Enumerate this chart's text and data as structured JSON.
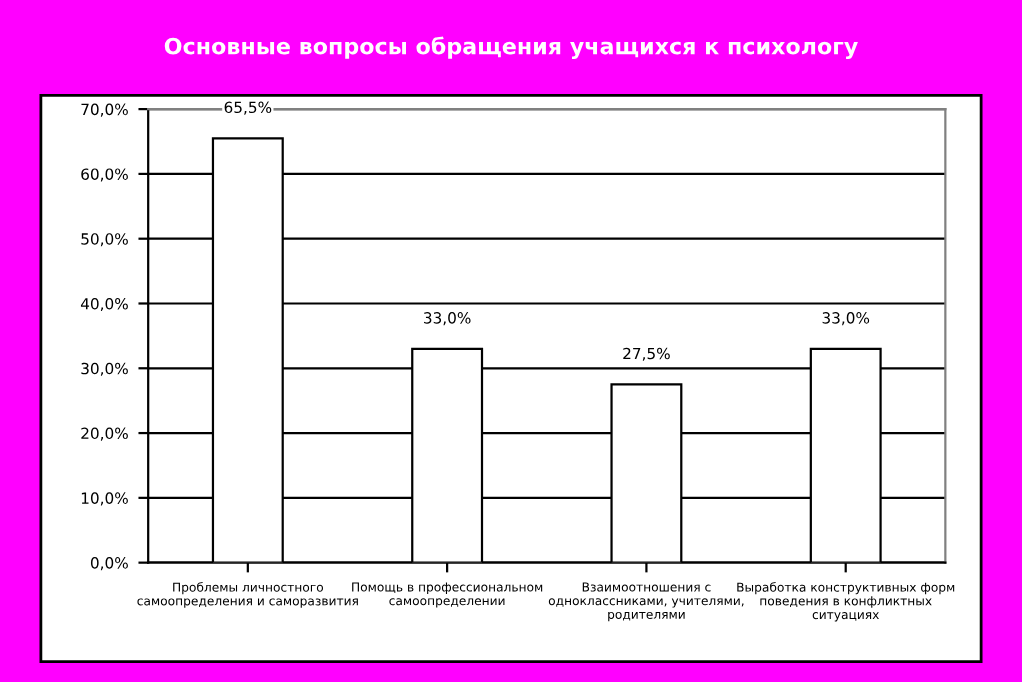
{
  "chart_data": {
    "type": "bar",
    "title": "Основные вопросы обращения учащихся к психологу",
    "categories": [
      "Проблемы личностного\nсамоопределения и саморазвития",
      "Помощь в профессиональном\nсамоопределении",
      "Взаимоотношения с\nодноклассниками, учителями,\nродителями",
      "Выработка конструктивных форм\nповедения в конфликтных\nситуациях"
    ],
    "values": [
      65.5,
      33.0,
      27.5,
      33.0
    ],
    "value_labels": [
      "65,5%",
      "33,0%",
      "27,5%",
      "33,0%"
    ],
    "color": "#ffffff",
    "ylim": [
      0,
      70
    ],
    "yticks": [
      {
        "value": 0,
        "label": "0,0%"
      },
      {
        "value": 10,
        "label": "10,0%"
      },
      {
        "value": 20,
        "label": "20,0%"
      },
      {
        "value": 30,
        "label": "30,0%"
      },
      {
        "value": 40,
        "label": "40,0%"
      },
      {
        "value": 50,
        "label": "50,0%"
      },
      {
        "value": 60,
        "label": "60,0%"
      },
      {
        "value": 70,
        "label": "70,0%"
      }
    ],
    "grid": "y"
  }
}
